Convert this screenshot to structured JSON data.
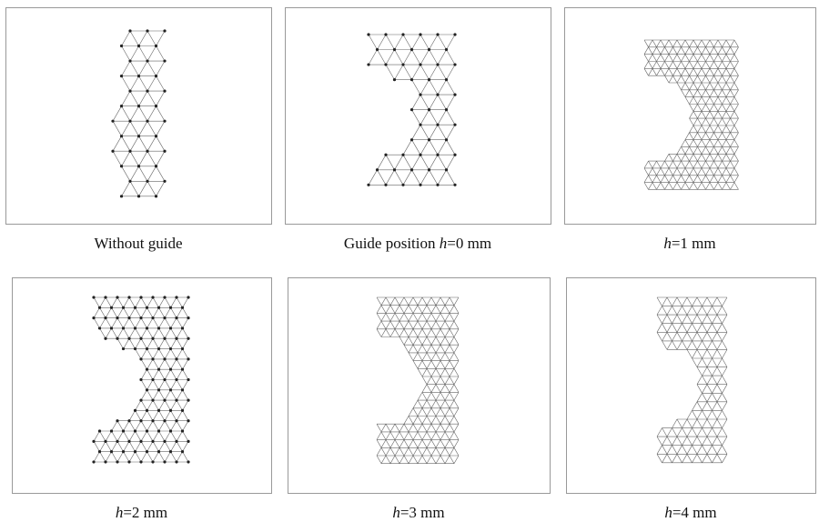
{
  "panels": [
    {
      "caption": [
        {
          "text": "Without guide",
          "italic": false
        }
      ]
    },
    {
      "caption": [
        {
          "text": "Guide position ",
          "italic": false
        },
        {
          "text": "h",
          "italic": true
        },
        {
          "text": "=0 mm",
          "italic": false
        }
      ]
    },
    {
      "caption": [
        {
          "text": "h",
          "italic": true
        },
        {
          "text": "=1 mm",
          "italic": false
        }
      ]
    },
    {
      "caption": [
        {
          "text": "h",
          "italic": true
        },
        {
          "text": "=2 mm",
          "italic": false
        }
      ]
    },
    {
      "caption": [
        {
          "text": "h",
          "italic": true
        },
        {
          "text": "=3 mm",
          "italic": false
        }
      ]
    },
    {
      "caption": [
        {
          "text": "h",
          "italic": true
        },
        {
          "text": "=4 mm",
          "italic": false
        }
      ]
    }
  ]
}
